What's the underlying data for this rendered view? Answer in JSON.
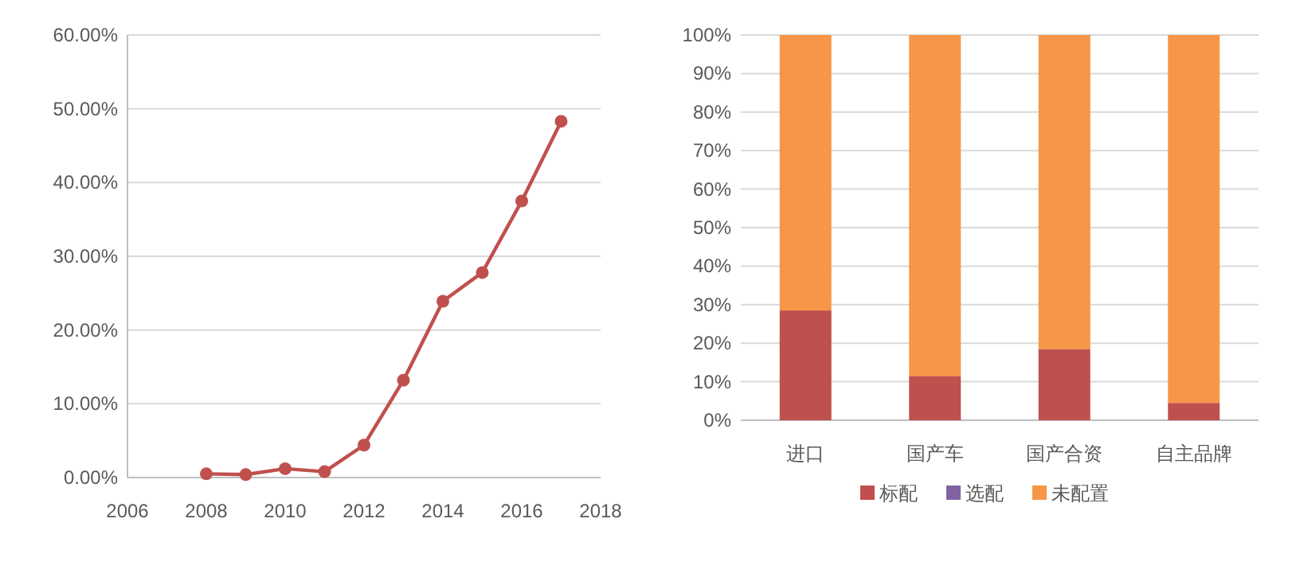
{
  "chart_data": [
    {
      "type": "line",
      "x": [
        2008,
        2009,
        2010,
        2011,
        2012,
        2013,
        2014,
        2015,
        2016,
        2017
      ],
      "series": [
        {
          "color": "#c0504d",
          "values": [
            0.5,
            0.4,
            1.2,
            0.8,
            4.4,
            13.2,
            23.9,
            27.8,
            37.5,
            48.3
          ]
        }
      ],
      "xlim": [
        2006,
        2018
      ],
      "xticks": [
        2006,
        2008,
        2010,
        2012,
        2014,
        2016,
        2018
      ],
      "ylim": [
        0,
        60
      ],
      "yticks": [
        {
          "value": 0,
          "label": "0.00%"
        },
        {
          "value": 10,
          "label": "10.00%"
        },
        {
          "value": 20,
          "label": "20.00%"
        },
        {
          "value": 30,
          "label": "30.00%"
        },
        {
          "value": 40,
          "label": "40.00%"
        },
        {
          "value": 50,
          "label": "50.00%"
        },
        {
          "value": 60,
          "label": "60.00%"
        }
      ],
      "grid": "y",
      "marker": "circle",
      "line_style": "solid",
      "legend": false
    },
    {
      "type": "bar",
      "stacked": true,
      "categories": [
        "进口",
        "国产车",
        "国产合资",
        "自主品牌"
      ],
      "series": [
        {
          "name": "标配",
          "color": "#c0504d",
          "values": [
            28.5,
            11.5,
            18.5,
            4.5
          ]
        },
        {
          "name": "选配",
          "color": "#8064a2",
          "values": [
            0,
            0,
            0,
            0
          ]
        },
        {
          "name": "未配置",
          "color": "#f79646",
          "values": [
            71.5,
            88.5,
            81.5,
            95.5
          ]
        }
      ],
      "ylim": [
        0,
        100
      ],
      "yticks": [
        {
          "value": 0,
          "label": "0%"
        },
        {
          "value": 10,
          "label": "10%"
        },
        {
          "value": 20,
          "label": "20%"
        },
        {
          "value": 30,
          "label": "30%"
        },
        {
          "value": 40,
          "label": "40%"
        },
        {
          "value": 50,
          "label": "50%"
        },
        {
          "value": 60,
          "label": "60%"
        },
        {
          "value": 70,
          "label": "70%"
        },
        {
          "value": 80,
          "label": "80%"
        },
        {
          "value": 90,
          "label": "90%"
        },
        {
          "value": 100,
          "label": "100%"
        }
      ],
      "grid": "y",
      "legend": "bottom"
    }
  ]
}
